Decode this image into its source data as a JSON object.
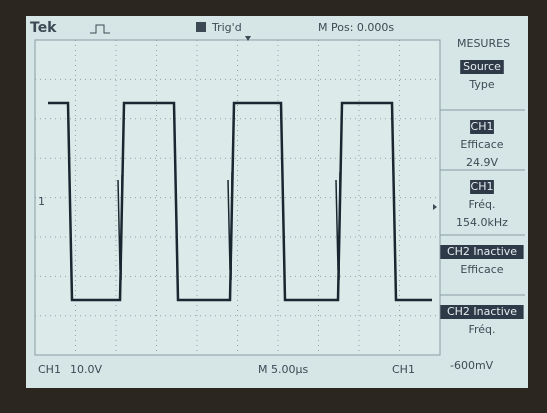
{
  "header": {
    "brand": "Tek",
    "trigger": "Trig'd",
    "position": "M Pos: 0.000s"
  },
  "menu": {
    "title": "MESURES",
    "items": [
      {
        "label": "Source",
        "sub": "Type"
      },
      {
        "label": "CH1",
        "sub": "Efficace",
        "value": "24.9V"
      },
      {
        "label": "CH1",
        "sub": "Fréq.",
        "value": "154.0kHz"
      },
      {
        "label": "CH2 Inactive",
        "sub": "Efficace"
      },
      {
        "label": "CH2 Inactive",
        "sub": "Fréq."
      }
    ]
  },
  "marker": "1",
  "footer": {
    "channel": "CH1",
    "scale": "10.0V",
    "timebase": "M 5.00µs",
    "trigger_source": "CH1",
    "trigger_level": "-600mV"
  }
}
